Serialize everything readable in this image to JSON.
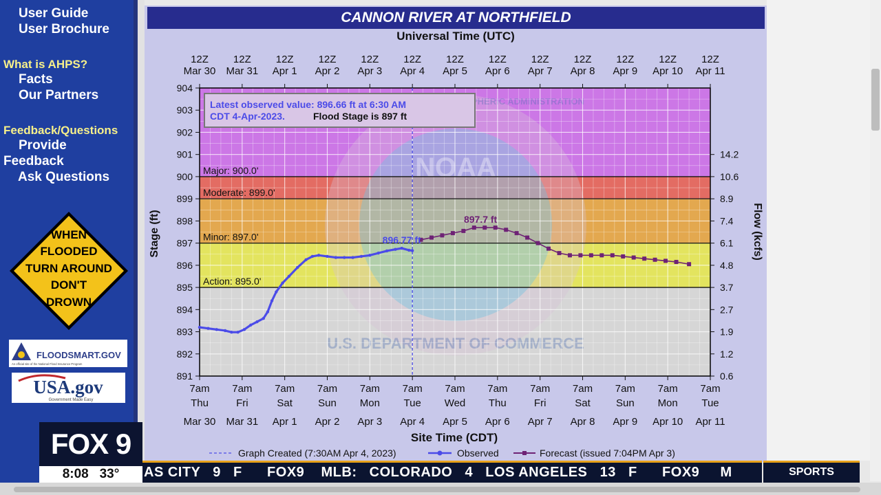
{
  "sidebar": {
    "links": [
      "User Guide",
      "User Brochure"
    ],
    "section_ahps": "What is AHPS?",
    "ahps_links": [
      "Facts",
      "Our Partners"
    ],
    "section_feedback": "Feedback/Questions",
    "feedback_link_1a": "Provide",
    "feedback_link_1b": "Feedback",
    "feedback_link_2": "Ask Questions",
    "sign_lines": [
      "WHEN",
      "FLOODED",
      "TURN AROUND",
      "DON'T",
      "DROWN"
    ],
    "floodsmart_label": "FLOODSMART.GOV",
    "floodsmart_sub": "An official site of the National Flood Insurance Program",
    "usagov_label": "USA.gov",
    "usagov_sub": "Government Made Easy"
  },
  "page": {
    "title": "CANNON RIVER AT NORTHFIELD"
  },
  "chart_data": {
    "type": "line",
    "title": "CANNON RIVER AT NORTHFIELD",
    "top_axis_title": "Universal Time (UTC)",
    "xlabel": "Site Time (CDT)",
    "ylabel": "Stage (ft)",
    "y2label": "Flow (kcfs)",
    "ylim": [
      891,
      904
    ],
    "xlim": [
      0,
      12
    ],
    "yticks": [
      891,
      892,
      893,
      894,
      895,
      896,
      897,
      898,
      899,
      900,
      901,
      902,
      903,
      904
    ],
    "flow_ticks": [
      {
        "stage": 891,
        "label": "0.6"
      },
      {
        "stage": 892,
        "label": "1.2"
      },
      {
        "stage": 893,
        "label": "1.9"
      },
      {
        "stage": 894,
        "label": "2.7"
      },
      {
        "stage": 895,
        "label": "3.7"
      },
      {
        "stage": 896,
        "label": "4.8"
      },
      {
        "stage": 897,
        "label": "6.1"
      },
      {
        "stage": 898,
        "label": "7.4"
      },
      {
        "stage": 899,
        "label": "8.9"
      },
      {
        "stage": 900,
        "label": "10.6"
      },
      {
        "stage": 901,
        "label": "14.2"
      }
    ],
    "top_ticks": [
      [
        "12Z",
        "Mar 30"
      ],
      [
        "12Z",
        "Mar 31"
      ],
      [
        "12Z",
        "Apr 1"
      ],
      [
        "12Z",
        "Apr 2"
      ],
      [
        "12Z",
        "Apr 3"
      ],
      [
        "12Z",
        "Apr 4"
      ],
      [
        "12Z",
        "Apr 5"
      ],
      [
        "12Z",
        "Apr 6"
      ],
      [
        "12Z",
        "Apr 7"
      ],
      [
        "12Z",
        "Apr 8"
      ],
      [
        "12Z",
        "Apr 9"
      ],
      [
        "12Z",
        "Apr 10"
      ],
      [
        "12Z",
        "Apr 11"
      ]
    ],
    "bottom_ticks": [
      [
        "7am",
        "Thu",
        "Mar 30"
      ],
      [
        "7am",
        "Fri",
        "Mar 31"
      ],
      [
        "7am",
        "Sat",
        "Apr 1"
      ],
      [
        "7am",
        "Sun",
        "Apr 2"
      ],
      [
        "7am",
        "Mon",
        "Apr 3"
      ],
      [
        "7am",
        "Tue",
        "Apr 4"
      ],
      [
        "7am",
        "Wed",
        "Apr 5"
      ],
      [
        "7am",
        "Thu",
        "Apr 6"
      ],
      [
        "7am",
        "Fri",
        "Apr 7"
      ],
      [
        "7am",
        "Sat",
        "Apr 8"
      ],
      [
        "7am",
        "Sun",
        "Apr 9"
      ],
      [
        "7am",
        "Mon",
        "Apr 10"
      ],
      [
        "7am",
        "Tue",
        "Apr 11"
      ]
    ],
    "bands": [
      {
        "name": "Major",
        "from": 900,
        "to": 904,
        "color": "#cc77e6"
      },
      {
        "name": "Moderate",
        "from": 899,
        "to": 900,
        "color": "#e36c63"
      },
      {
        "name": "Minor",
        "from": 897,
        "to": 899,
        "color": "#e3a84f"
      },
      {
        "name": "Action",
        "from": 895,
        "to": 897,
        "color": "#e3e45f"
      }
    ],
    "thresholds": [
      {
        "label": "Major: 900.0'",
        "value": 900
      },
      {
        "label": "Moderate: 899.0'",
        "value": 899
      },
      {
        "label": "Minor: 897.0'",
        "value": 897
      },
      {
        "label": "Action: 895.0'",
        "value": 895
      }
    ],
    "observed": {
      "name": "Observed",
      "color": "#4b4be8",
      "points": [
        [
          0.0,
          893.2
        ],
        [
          0.2,
          893.15
        ],
        [
          0.4,
          893.1
        ],
        [
          0.6,
          893.05
        ],
        [
          0.75,
          892.98
        ],
        [
          0.9,
          892.98
        ],
        [
          1.05,
          893.1
        ],
        [
          1.2,
          893.3
        ],
        [
          1.35,
          893.45
        ],
        [
          1.5,
          893.6
        ],
        [
          1.6,
          893.9
        ],
        [
          1.7,
          894.4
        ],
        [
          1.8,
          894.8
        ],
        [
          1.95,
          895.2
        ],
        [
          2.1,
          895.5
        ],
        [
          2.3,
          895.9
        ],
        [
          2.5,
          896.25
        ],
        [
          2.65,
          896.4
        ],
        [
          2.8,
          896.45
        ],
        [
          3.0,
          896.4
        ],
        [
          3.2,
          896.35
        ],
        [
          3.4,
          896.35
        ],
        [
          3.6,
          896.35
        ],
        [
          3.8,
          896.4
        ],
        [
          4.0,
          896.45
        ],
        [
          4.2,
          896.55
        ],
        [
          4.4,
          896.65
        ],
        [
          4.6,
          896.72
        ],
        [
          4.75,
          896.77
        ],
        [
          4.92,
          896.68
        ],
        [
          5.0,
          896.66
        ]
      ]
    },
    "forecast": {
      "name": "Forecast (issued 7:04PM Apr 3)",
      "color": "#6e2275",
      "points": [
        [
          5.2,
          897.15
        ],
        [
          5.45,
          897.25
        ],
        [
          5.7,
          897.35
        ],
        [
          5.95,
          897.45
        ],
        [
          6.2,
          897.55
        ],
        [
          6.45,
          897.7
        ],
        [
          6.7,
          897.7
        ],
        [
          6.95,
          897.7
        ],
        [
          7.2,
          897.6
        ],
        [
          7.45,
          897.45
        ],
        [
          7.7,
          897.25
        ],
        [
          7.95,
          897.0
        ],
        [
          8.2,
          896.75
        ],
        [
          8.45,
          896.55
        ],
        [
          8.7,
          896.45
        ],
        [
          8.95,
          896.45
        ],
        [
          9.2,
          896.45
        ],
        [
          9.45,
          896.45
        ],
        [
          9.7,
          896.45
        ],
        [
          9.95,
          896.4
        ],
        [
          10.2,
          896.35
        ],
        [
          10.45,
          896.3
        ],
        [
          10.7,
          896.25
        ],
        [
          10.95,
          896.2
        ],
        [
          11.2,
          896.15
        ],
        [
          11.5,
          896.05
        ]
      ]
    },
    "annotations": [
      {
        "text": "896.77 ft",
        "x": 4.75,
        "y": 896.77,
        "color": "#4b4be8"
      },
      {
        "text": "897.7 ft",
        "x": 6.6,
        "y": 897.7,
        "color": "#6e2275"
      }
    ],
    "graph_created_x": 5.0,
    "infobox": {
      "line1": "Latest observed value: 896.66 ft at 6:30 AM",
      "line2a": "CDT 4-Apr-2023.",
      "line2b": "Flood Stage is 897 ft"
    },
    "legend": {
      "created": "Graph Created (7:30AM Apr 4, 2023)",
      "observed": "Observed",
      "forecast": "Forecast (issued 7:04PM Apr 3)"
    },
    "watermark": {
      "top": "NATIONAL OCEANIC AND ATMOSPHERIC ADMINISTRATION",
      "center": "NOAA",
      "bottom": "U.S. DEPARTMENT OF COMMERCE"
    },
    "grid": true,
    "legend_position": "bottom"
  },
  "tv": {
    "logo": "FOX 9",
    "time": "8:08",
    "temp": "33°",
    "ticker": "AS CITY   9   F      FOX9    MLB:   COLORADO   4   LOS ANGELES   13   F      FOX9     M",
    "sports": "SPORTS"
  }
}
